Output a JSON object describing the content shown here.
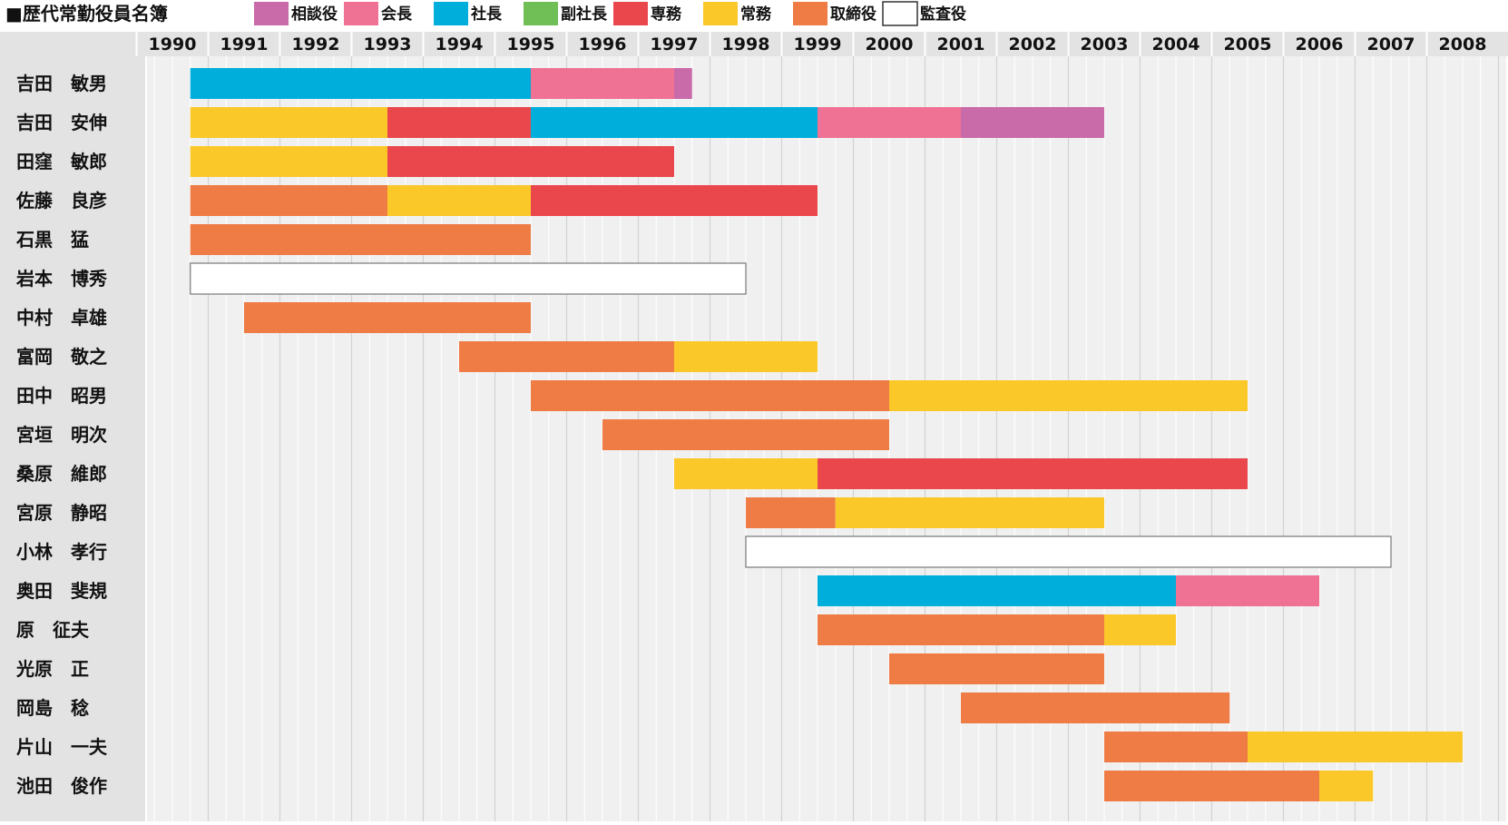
{
  "chart_data": {
    "type": "gantt",
    "title": "■歴代常勤役員名簿",
    "legend": [
      {
        "key": "soudanyaku",
        "label": "相談役",
        "color": "#c96aa9"
      },
      {
        "key": "kaicho",
        "label": "会長",
        "color": "#ef7193"
      },
      {
        "key": "shacho",
        "label": "社長",
        "color": "#00aedb"
      },
      {
        "key": "fukushacho",
        "label": "副社長",
        "color": "#6fbf56"
      },
      {
        "key": "senmu",
        "label": "専務",
        "color": "#ea474d"
      },
      {
        "key": "jomu",
        "label": "常務",
        "color": "#fbc82a"
      },
      {
        "key": "torishimariyaku",
        "label": "取締役",
        "color": "#ef7c45"
      },
      {
        "key": "kansayaku",
        "label": "監査役",
        "color": "#ffffff"
      }
    ],
    "legend_placement": "top",
    "x_range": [
      1989.5,
      2008.5
    ],
    "years": [
      "1990",
      "1991",
      "1992",
      "1993",
      "1994",
      "1995",
      "1996",
      "1997",
      "1998",
      "1999",
      "2000",
      "2001",
      "2002",
      "2003",
      "2004",
      "2005",
      "2006",
      "2007",
      "2008"
    ],
    "rows": [
      {
        "name": "吉田　敏男",
        "segments": [
          {
            "role": "shacho",
            "start": 1990.25,
            "end": 1995.0
          },
          {
            "role": "kaicho",
            "start": 1995.0,
            "end": 1997.0
          },
          {
            "role": "soudanyaku",
            "start": 1997.0,
            "end": 1997.25
          }
        ]
      },
      {
        "name": "吉田　安伸",
        "segments": [
          {
            "role": "jomu",
            "start": 1990.25,
            "end": 1993.0
          },
          {
            "role": "senmu",
            "start": 1993.0,
            "end": 1995.0
          },
          {
            "role": "shacho",
            "start": 1995.0,
            "end": 1999.0
          },
          {
            "role": "kaicho",
            "start": 1999.0,
            "end": 2001.0
          },
          {
            "role": "soudanyaku",
            "start": 2001.0,
            "end": 2003.0
          }
        ]
      },
      {
        "name": "田窪　敏郎",
        "segments": [
          {
            "role": "jomu",
            "start": 1990.25,
            "end": 1993.0
          },
          {
            "role": "senmu",
            "start": 1993.0,
            "end": 1997.0
          }
        ]
      },
      {
        "name": "佐藤　良彦",
        "segments": [
          {
            "role": "torishimariyaku",
            "start": 1990.25,
            "end": 1993.0
          },
          {
            "role": "jomu",
            "start": 1993.0,
            "end": 1995.0
          },
          {
            "role": "senmu",
            "start": 1995.0,
            "end": 1999.0
          }
        ]
      },
      {
        "name": "石黒　猛",
        "segments": [
          {
            "role": "torishimariyaku",
            "start": 1990.25,
            "end": 1995.0
          }
        ]
      },
      {
        "name": "岩本　博秀",
        "segments": [
          {
            "role": "kansayaku",
            "start": 1990.25,
            "end": 1998.0
          }
        ]
      },
      {
        "name": "中村　卓雄",
        "segments": [
          {
            "role": "torishimariyaku",
            "start": 1991.0,
            "end": 1995.0
          }
        ]
      },
      {
        "name": "富岡　敬之",
        "segments": [
          {
            "role": "torishimariyaku",
            "start": 1994.0,
            "end": 1997.0
          },
          {
            "role": "jomu",
            "start": 1997.0,
            "end": 1999.0
          }
        ]
      },
      {
        "name": "田中　昭男",
        "segments": [
          {
            "role": "torishimariyaku",
            "start": 1995.0,
            "end": 2000.0
          },
          {
            "role": "jomu",
            "start": 2000.0,
            "end": 2005.0
          }
        ]
      },
      {
        "name": "宮垣　明次",
        "segments": [
          {
            "role": "torishimariyaku",
            "start": 1996.0,
            "end": 2000.0
          }
        ]
      },
      {
        "name": "桑原　維郎",
        "segments": [
          {
            "role": "jomu",
            "start": 1997.0,
            "end": 1999.0
          },
          {
            "role": "senmu",
            "start": 1999.0,
            "end": 2005.0
          }
        ]
      },
      {
        "name": "宮原　静昭",
        "segments": [
          {
            "role": "torishimariyaku",
            "start": 1998.0,
            "end": 1999.25
          },
          {
            "role": "jomu",
            "start": 1999.25,
            "end": 2003.0
          }
        ]
      },
      {
        "name": "小林　孝行",
        "segments": [
          {
            "role": "kansayaku",
            "start": 1998.0,
            "end": 2007.0
          }
        ]
      },
      {
        "name": "奥田　斐規",
        "segments": [
          {
            "role": "shacho",
            "start": 1999.0,
            "end": 2004.0
          },
          {
            "role": "kaicho",
            "start": 2004.0,
            "end": 2006.0
          }
        ]
      },
      {
        "name": "原　征夫",
        "segments": [
          {
            "role": "torishimariyaku",
            "start": 1999.0,
            "end": 2003.0
          },
          {
            "role": "jomu",
            "start": 2003.0,
            "end": 2004.0
          }
        ]
      },
      {
        "name": "光原　正",
        "segments": [
          {
            "role": "torishimariyaku",
            "start": 2000.0,
            "end": 2003.0
          }
        ]
      },
      {
        "name": "岡島　稔",
        "segments": [
          {
            "role": "torishimariyaku",
            "start": 2001.0,
            "end": 2004.75
          }
        ]
      },
      {
        "name": "片山　一夫",
        "segments": [
          {
            "role": "torishimariyaku",
            "start": 2003.0,
            "end": 2005.0
          },
          {
            "role": "jomu",
            "start": 2005.0,
            "end": 2008.0
          }
        ]
      },
      {
        "name": "池田　俊作",
        "segments": [
          {
            "role": "torishimariyaku",
            "start": 2003.0,
            "end": 2006.0
          },
          {
            "role": "jomu",
            "start": 2006.0,
            "end": 2006.75
          }
        ]
      }
    ]
  }
}
